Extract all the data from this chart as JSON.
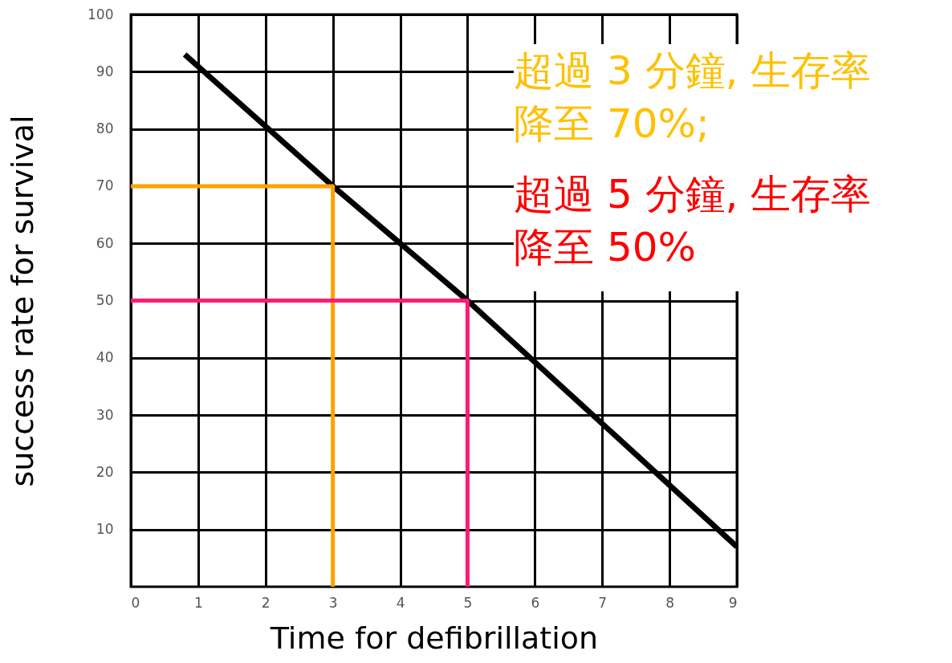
{
  "chart_data": {
    "type": "line",
    "xlabel": "Time for defibrillation",
    "ylabel": "success rate for survival",
    "xlim": [
      0,
      9
    ],
    "ylim": [
      0,
      100
    ],
    "xticks": [
      0,
      1,
      2,
      3,
      4,
      5,
      6,
      7,
      8,
      9
    ],
    "yticks": [
      10,
      20,
      30,
      40,
      50,
      60,
      70,
      80,
      90,
      100
    ],
    "grid": true,
    "marker": "none",
    "line_style": "solid",
    "series": [
      {
        "x": [
          0.8,
          3,
          5,
          9
        ],
        "values": [
          93,
          70,
          50,
          7
        ],
        "color": "#000000"
      },
      {
        "x": [
          0,
          3,
          3
        ],
        "values": [
          70,
          70,
          0
        ],
        "color": "#ffa000"
      },
      {
        "x": [
          0,
          5,
          5
        ],
        "values": [
          50,
          50,
          0
        ],
        "color": "#ff1a75"
      }
    ],
    "annotations": [
      "超過 3 分鐘, 生存率降至 70%;",
      "超過 5 分鐘, 生存率降至 50%"
    ]
  }
}
